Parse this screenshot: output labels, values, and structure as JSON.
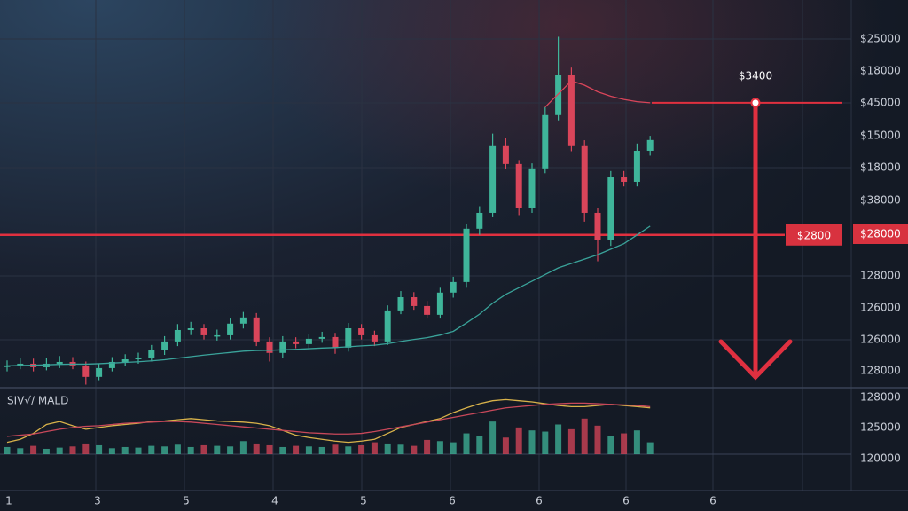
{
  "chart_data": {
    "type": "candlestick",
    "ylim": [
      2106,
      3867
    ],
    "open": [
      2200,
      2207,
      2215,
      2199,
      2215,
      2223,
      2207,
      2155,
      2195,
      2223,
      2235,
      2243,
      2276,
      2316,
      2368,
      2376,
      2344,
      2344,
      2397,
      2425,
      2316,
      2264,
      2316,
      2304,
      2328,
      2336,
      2288,
      2376,
      2344,
      2316,
      2457,
      2517,
      2477,
      2437,
      2538,
      2586,
      2828,
      2900,
      3203,
      3122,
      2920,
      3102,
      3344,
      3525,
      3203,
      2900,
      2779,
      3061,
      3041,
      3182
    ],
    "high": [
      2230,
      2240,
      2238,
      2240,
      2250,
      2245,
      2225,
      2215,
      2245,
      2258,
      2265,
      2300,
      2340,
      2395,
      2405,
      2395,
      2370,
      2420,
      2450,
      2445,
      2335,
      2340,
      2335,
      2350,
      2360,
      2355,
      2400,
      2395,
      2365,
      2480,
      2545,
      2540,
      2500,
      2560,
      2610,
      2850,
      2930,
      3260,
      3240,
      3140,
      3125,
      3380,
      3700,
      3560,
      3230,
      2920,
      3090,
      3090,
      3215,
      3250
    ],
    "low": [
      2180,
      2190,
      2180,
      2185,
      2195,
      2190,
      2120,
      2140,
      2180,
      2205,
      2215,
      2225,
      2255,
      2295,
      2345,
      2325,
      2320,
      2325,
      2375,
      2295,
      2225,
      2240,
      2285,
      2285,
      2310,
      2260,
      2270,
      2325,
      2295,
      2300,
      2440,
      2460,
      2420,
      2420,
      2515,
      2560,
      2800,
      2880,
      3100,
      2890,
      2900,
      3080,
      3320,
      3180,
      2860,
      2680,
      2750,
      3020,
      3020,
      3160
    ],
    "close": [
      2207,
      2215,
      2199,
      2215,
      2223,
      2207,
      2155,
      2195,
      2223,
      2235,
      2243,
      2276,
      2316,
      2368,
      2376,
      2344,
      2344,
      2397,
      2425,
      2316,
      2264,
      2316,
      2304,
      2328,
      2336,
      2288,
      2376,
      2344,
      2316,
      2457,
      2517,
      2477,
      2437,
      2538,
      2586,
      2828,
      2900,
      3203,
      3122,
      2920,
      3102,
      3344,
      3525,
      3203,
      2900,
      2779,
      3061,
      3041,
      3182,
      3231
    ],
    "ma": [
      2205,
      2207,
      2208,
      2210,
      2212,
      2213,
      2213,
      2215,
      2218,
      2221,
      2224,
      2228,
      2233,
      2240,
      2247,
      2254,
      2260,
      2266,
      2272,
      2275,
      2276,
      2278,
      2280,
      2283,
      2286,
      2288,
      2292,
      2296,
      2299,
      2306,
      2316,
      2325,
      2333,
      2345,
      2362,
      2400,
      2440,
      2490,
      2530,
      2560,
      2590,
      2620,
      2650,
      2670,
      2690,
      2710,
      2735,
      2760,
      2800,
      2840
    ],
    "ma2": [
      null,
      null,
      null,
      null,
      null,
      null,
      null,
      null,
      null,
      null,
      null,
      null,
      null,
      null,
      null,
      null,
      null,
      null,
      null,
      null,
      null,
      null,
      null,
      null,
      null,
      null,
      null,
      null,
      null,
      null,
      null,
      null,
      null,
      null,
      null,
      null,
      null,
      null,
      null,
      null,
      null,
      3380,
      3440,
      3500,
      3480,
      3450,
      3430,
      3415,
      3405,
      3400
    ],
    "levels": [
      {
        "value": 3400,
        "label": "$3400"
      },
      {
        "value": 2800,
        "label": "$2800"
      }
    ],
    "y_axis_labels": [
      "$25000",
      "$18000",
      "$45000",
      "$15000",
      "$18000",
      "$38000",
      "$28000",
      "128000",
      "126000",
      "126000",
      "128000"
    ],
    "indicator_label": "SIV√/ MALD",
    "vlim": [
      0,
      100
    ],
    "volume": [
      12,
      10,
      14,
      9,
      11,
      13,
      18,
      15,
      10,
      12,
      11,
      14,
      13,
      16,
      12,
      15,
      14,
      13,
      22,
      18,
      15,
      12,
      14,
      13,
      12,
      16,
      13,
      15,
      20,
      18,
      16,
      14,
      24,
      22,
      20,
      35,
      30,
      55,
      28,
      45,
      40,
      38,
      50,
      42,
      60,
      48,
      30,
      35,
      40,
      20
    ],
    "osc": [
      20,
      25,
      35,
      50,
      55,
      48,
      42,
      45,
      48,
      50,
      52,
      55,
      56,
      58,
      60,
      58,
      56,
      55,
      54,
      52,
      48,
      40,
      32,
      28,
      25,
      22,
      20,
      22,
      25,
      35,
      45,
      50,
      55,
      60,
      70,
      78,
      85,
      90,
      92,
      90,
      88,
      85,
      82,
      80,
      80,
      82,
      84,
      82,
      80,
      78
    ],
    "osc2": [
      30,
      32,
      34,
      38,
      42,
      45,
      47,
      48,
      50,
      52,
      53,
      54,
      55,
      55,
      54,
      52,
      50,
      48,
      46,
      44,
      42,
      40,
      38,
      36,
      35,
      34,
      34,
      35,
      38,
      42,
      46,
      50,
      54,
      58,
      62,
      66,
      70,
      74,
      78,
      80,
      82,
      84,
      85,
      86,
      86,
      85,
      84,
      83,
      82,
      80
    ],
    "volume_axis_labels": [
      "128000",
      "125000",
      "120000"
    ],
    "x_axis_labels": [
      "1",
      "3",
      "5",
      "4",
      "5",
      "6",
      "6",
      "6",
      "6"
    ]
  }
}
